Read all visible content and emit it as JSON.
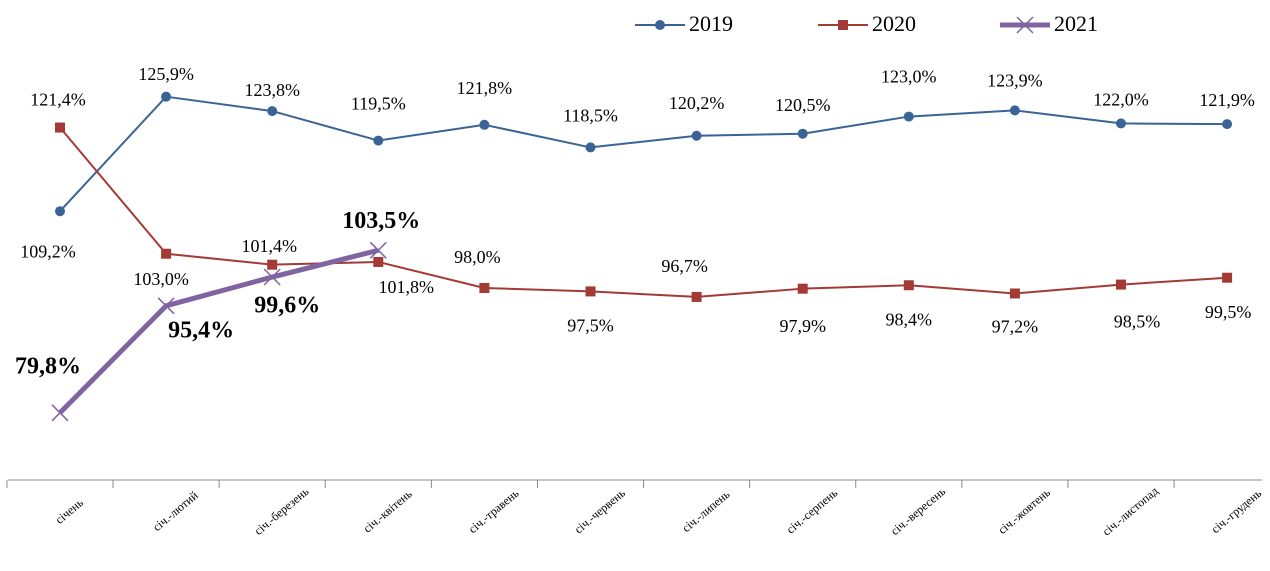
{
  "chart_data": {
    "type": "line",
    "categories": [
      "січень",
      "січ.-лютий",
      "січ.-березень",
      "січ.-квітень",
      "січ.-травень",
      "січ.-червень",
      "січ.-липень",
      "січ.-серпень",
      "січ.-вересень",
      "січ.-жовтень",
      "січ.-листопад",
      "січ.-грудень"
    ],
    "series": [
      {
        "name": "2019",
        "color": "#3a6496",
        "marker": "circle",
        "values": [
          109.2,
          125.9,
          123.8,
          119.5,
          121.8,
          118.5,
          120.2,
          120.5,
          123.0,
          123.9,
          122.0,
          121.9
        ],
        "value_labels": [
          "109,2%",
          "125,9%",
          "123,8%",
          "119,5%",
          "121,8%",
          "118,5%",
          "120,2%",
          "120,5%",
          "123,0%",
          "123,9%",
          "122,0%",
          "121,9%"
        ]
      },
      {
        "name": "2020",
        "color": "#a33a35",
        "marker": "square",
        "values": [
          121.4,
          103.0,
          101.4,
          101.8,
          98.0,
          97.5,
          96.7,
          97.9,
          98.4,
          97.2,
          98.5,
          99.5
        ],
        "value_labels": [
          "121,4%",
          "103,0%",
          "101,4%",
          "101,8%",
          "98,0%",
          "97,5%",
          "96,7%",
          "97,9%",
          "98,4%",
          "97,2%",
          "98,5%",
          "99,5%"
        ]
      },
      {
        "name": "2021",
        "color": "#8064a2",
        "marker": "x",
        "values": [
          79.8,
          95.4,
          99.6,
          103.5,
          null,
          null,
          null,
          null,
          null,
          null,
          null,
          null
        ],
        "value_labels": [
          "79,8%",
          "95,4%",
          "99,6%",
          "103,5%",
          null,
          null,
          null,
          null,
          null,
          null,
          null,
          null
        ]
      }
    ],
    "ylim": [
      70,
      140
    ],
    "legend": "top"
  }
}
